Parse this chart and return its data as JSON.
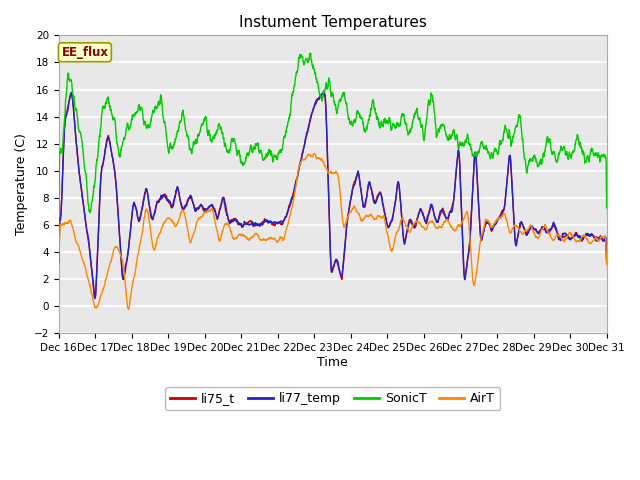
{
  "title": "Instument Temperatures",
  "xlabel": "Time",
  "ylabel": "Temperature (C)",
  "ylim": [
    -2,
    20
  ],
  "annotation": "EE_flux",
  "legend_labels": [
    "li75_t",
    "li77_temp",
    "SonicT",
    "AirT"
  ],
  "line_colors": [
    "#cc0000",
    "#2222cc",
    "#00cc00",
    "#ff8800"
  ],
  "fig_bg": "#ffffff",
  "plot_bg": "#e8e8e8",
  "grid_color": "#ffffff",
  "x_ticks": [
    "Dec 16",
    "Dec 17",
    "Dec 18",
    "Dec 19",
    "Dec 20",
    "Dec 21",
    "Dec 22",
    "Dec 23",
    "Dec 24",
    "Dec 25",
    "Dec 26",
    "Dec 27",
    "Dec 28",
    "Dec 29",
    "Dec 30",
    "Dec 31"
  ],
  "num_points": 2000
}
